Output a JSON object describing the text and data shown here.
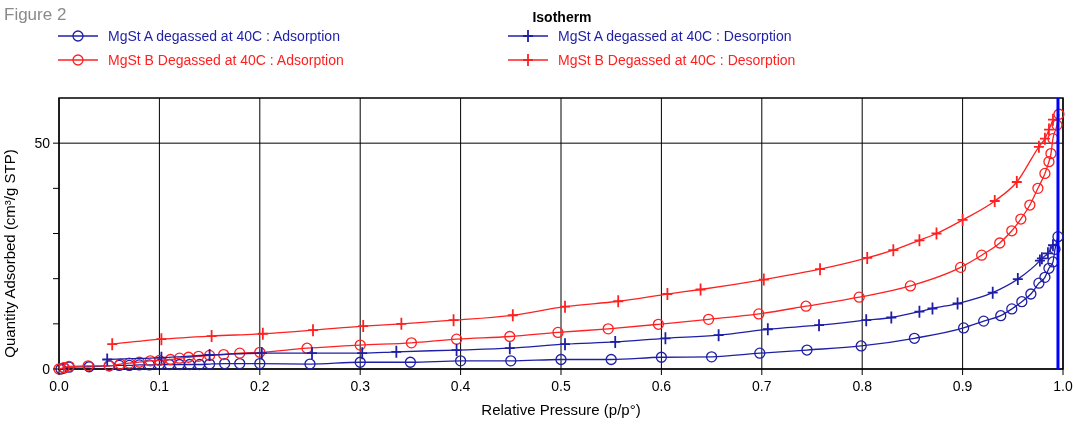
{
  "chart_data": {
    "type": "line",
    "title": "Isotherm",
    "xlabel": "Relative Pressure (p/p°)",
    "ylabel": "Quantity Adsorbed (cm³/g STP)",
    "annotations": [
      "Figure 2"
    ],
    "xlim": [
      0,
      1
    ],
    "xticks": [
      {
        "value": 0,
        "label": "0.0"
      },
      0.1,
      0.2,
      0.3,
      0.4,
      0.5,
      0.6,
      0.7,
      0.8,
      0.9,
      {
        "value": 1,
        "label": "1.0"
      }
    ],
    "ylim": [
      0,
      60
    ],
    "yticks": [
      0,
      {
        "value": 10,
        "label": null
      },
      {
        "value": 20,
        "label": null
      },
      {
        "value": 30,
        "label": null
      },
      {
        "value": 40,
        "label": null
      },
      50
    ],
    "grid": true,
    "legend": "top",
    "line_style": "solid",
    "ref_lines": [
      {
        "axis": "x",
        "value": 0.995,
        "color": "#0000ff"
      }
    ],
    "series": [
      {
        "name": "MgSt A degassed at 40C : Adsorption",
        "color": "#1f1fa6",
        "marker": "circle",
        "x": [
          0.002,
          0.005,
          0.01,
          0.03,
          0.05,
          0.06,
          0.07,
          0.08,
          0.09,
          0.1,
          0.11,
          0.12,
          0.13,
          0.14,
          0.15,
          0.165,
          0.18,
          0.2,
          0.25,
          0.3,
          0.35,
          0.4,
          0.45,
          0.5,
          0.55,
          0.6,
          0.65,
          0.698,
          0.745,
          0.799,
          0.852,
          0.901,
          0.921,
          0.938,
          0.949,
          0.959,
          0.968,
          0.976,
          0.982,
          0.986,
          0.99,
          0.992,
          0.995
        ],
        "values": [
          0,
          0.2,
          0.4,
          0.5,
          0.7,
          0.8,
          0.8,
          0.9,
          0.9,
          1,
          1,
          1,
          1,
          1,
          1.1,
          1.2,
          1.2,
          1.2,
          1.1,
          1.5,
          1.5,
          1.8,
          1.8,
          2.1,
          2.1,
          2.6,
          2.7,
          3.5,
          4.2,
          5.1,
          6.8,
          9.1,
          10.6,
          11.8,
          13.3,
          14.9,
          16.6,
          19,
          20.3,
          22.3,
          23.7,
          26.5,
          29.3
        ]
      },
      {
        "name": "MgSt B Degassed at 40C : Adsorption",
        "color": "#ff2020",
        "marker": "circle",
        "x": [
          0,
          0.005,
          0.01,
          0.029,
          0.05,
          0.061,
          0.07,
          0.08,
          0.091,
          0.1,
          0.111,
          0.12,
          0.129,
          0.139,
          0.15,
          0.164,
          0.18,
          0.2,
          0.247,
          0.3,
          0.351,
          0.396,
          0.449,
          0.497,
          0.547,
          0.597,
          0.647,
          0.697,
          0.744,
          0.797,
          0.848,
          0.898,
          0.919,
          0.937,
          0.949,
          0.958,
          0.967,
          0.975,
          0.982,
          0.986,
          0.988,
          0.99,
          0.994,
          0.996
        ],
        "values": [
          0,
          0.3,
          0.6,
          0.7,
          0.7,
          1.1,
          1.3,
          1.5,
          1.8,
          1.9,
          2.1,
          2.4,
          2.6,
          2.8,
          3,
          3.2,
          3.5,
          3.7,
          4.6,
          5.3,
          5.8,
          6.6,
          7.2,
          8.1,
          8.9,
          9.9,
          11,
          12.2,
          13.9,
          15.9,
          18.4,
          22.5,
          25.2,
          27.9,
          30.6,
          33.2,
          36.3,
          40,
          43.3,
          45.9,
          47.7,
          51,
          54,
          56.4
        ]
      },
      {
        "name": "MgSt A degassed at 40C : Desorption",
        "color": "#1f1fa6",
        "marker": "cross",
        "x": [
          0.048,
          0.102,
          0.15,
          0.202,
          0.252,
          0.302,
          0.336,
          0.396,
          0.449,
          0.504,
          0.554,
          0.604,
          0.657,
          0.706,
          0.757,
          0.804,
          0.829,
          0.857,
          0.87,
          0.895,
          0.93,
          0.955,
          0.977,
          0.979,
          0.985,
          0.99
        ],
        "values": [
          2.1,
          2.5,
          3.1,
          3.5,
          3.5,
          3.5,
          3.8,
          4.2,
          4.6,
          5.5,
          6,
          6.8,
          7.5,
          8.8,
          9.7,
          10.8,
          11.4,
          12.7,
          13.4,
          14.5,
          16.9,
          19.9,
          24,
          24.5,
          25.6,
          27.4
        ]
      },
      {
        "name": "MgSt B Degassed at 40C : Desorption",
        "color": "#ff2020",
        "marker": "cross",
        "x": [
          0.053,
          0.102,
          0.152,
          0.203,
          0.253,
          0.303,
          0.341,
          0.393,
          0.452,
          0.504,
          0.557,
          0.606,
          0.639,
          0.702,
          0.758,
          0.805,
          0.831,
          0.857,
          0.874,
          0.9,
          0.932,
          0.954,
          0.976,
          0.982,
          0.986,
          0.99
        ],
        "values": [
          5.5,
          6.6,
          7.3,
          7.8,
          8.6,
          9.5,
          10,
          10.8,
          11.9,
          13.8,
          15,
          16.6,
          17.6,
          19.8,
          22.1,
          24.6,
          26.3,
          28.5,
          30,
          33,
          37.2,
          41.4,
          49.2,
          51,
          53,
          55.2
        ]
      }
    ]
  }
}
